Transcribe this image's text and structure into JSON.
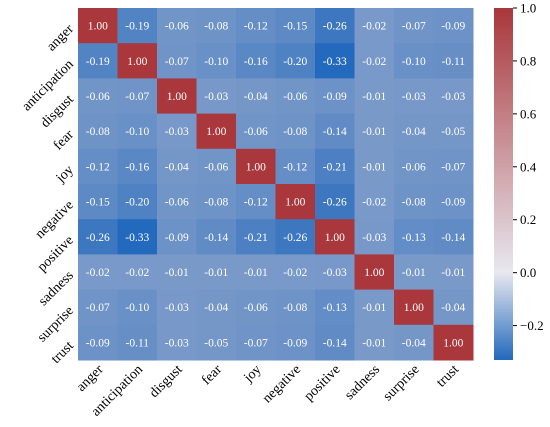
{
  "chart_data": {
    "type": "heatmap",
    "title": "",
    "xlabel": "",
    "ylabel": "",
    "categories_x": [
      "anger",
      "anticipation",
      "disgust",
      "fear",
      "joy",
      "negative",
      "positive",
      "sadness",
      "surprise",
      "trust"
    ],
    "categories_y": [
      "anger",
      "anticipation",
      "disgust",
      "fear",
      "joy",
      "negative",
      "positive",
      "sadness",
      "surprise",
      "trust"
    ],
    "values": [
      [
        1.0,
        -0.19,
        -0.06,
        -0.08,
        -0.12,
        -0.15,
        -0.26,
        -0.02,
        -0.07,
        -0.09
      ],
      [
        -0.19,
        1.0,
        -0.07,
        -0.1,
        -0.16,
        -0.2,
        -0.33,
        -0.02,
        -0.1,
        -0.11
      ],
      [
        -0.06,
        -0.07,
        1.0,
        -0.03,
        -0.04,
        -0.06,
        -0.09,
        -0.01,
        -0.03,
        -0.03
      ],
      [
        -0.08,
        -0.1,
        -0.03,
        1.0,
        -0.06,
        -0.08,
        -0.14,
        -0.01,
        -0.04,
        -0.05
      ],
      [
        -0.12,
        -0.16,
        -0.04,
        -0.06,
        1.0,
        -0.12,
        -0.21,
        -0.01,
        -0.06,
        -0.07
      ],
      [
        -0.15,
        -0.2,
        -0.06,
        -0.08,
        -0.12,
        1.0,
        -0.26,
        -0.02,
        -0.08,
        -0.09
      ],
      [
        -0.26,
        -0.33,
        -0.09,
        -0.14,
        -0.21,
        -0.26,
        1.0,
        -0.03,
        -0.13,
        -0.14
      ],
      [
        -0.02,
        -0.02,
        -0.01,
        -0.01,
        -0.01,
        -0.02,
        -0.03,
        1.0,
        -0.01,
        -0.01
      ],
      [
        -0.07,
        -0.1,
        -0.03,
        -0.04,
        -0.06,
        -0.08,
        -0.13,
        -0.01,
        1.0,
        -0.04
      ],
      [
        -0.09,
        -0.11,
        -0.03,
        -0.05,
        -0.07,
        -0.09,
        -0.14,
        -0.01,
        -0.04,
        1.0
      ]
    ],
    "colorscale": "vlag",
    "color_low": "#2369bd",
    "color_mid": "#e8e8ef",
    "color_high": "#a9373b",
    "vmin": -0.33,
    "vmax": 1.0,
    "colorbar_ticks": [
      1.0,
      0.8,
      0.6,
      0.4,
      0.2,
      0.0,
      -0.2
    ],
    "colorbar_tick_labels": [
      "1.0",
      "0.8",
      "0.6",
      "0.4",
      "0.2",
      "0.0",
      "−0.2"
    ],
    "grid": false,
    "legend": "colorbar-right"
  }
}
